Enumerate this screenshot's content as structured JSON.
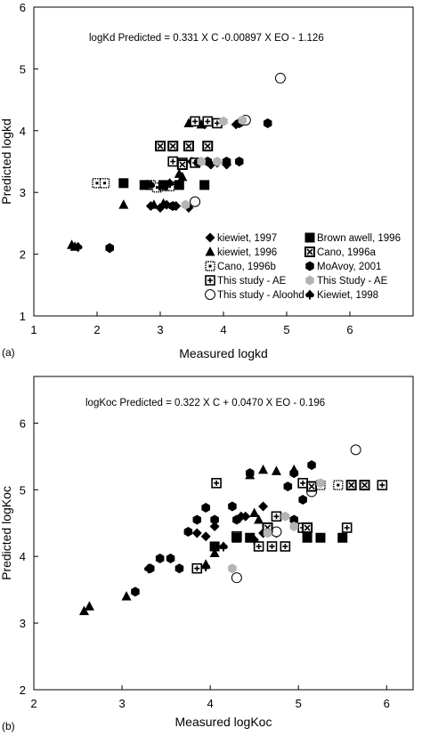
{
  "colors": {
    "black": "#000000",
    "gray": "#b4b4b4",
    "white": "#ffffff"
  },
  "chart_data": [
    {
      "type": "scatter",
      "panel_label": "(a)",
      "equation": "logKd Predicted = 0.331 X C -0.00897 X EO - 1.126",
      "xlabel": "Measured logkd",
      "ylabel": "Predicted logkd",
      "xlim": [
        1,
        7
      ],
      "ylim": [
        1,
        6
      ],
      "xticks": [
        "1",
        "2",
        "3",
        "4",
        "5",
        "6"
      ],
      "yticks": [
        "1",
        "2",
        "3",
        "4",
        "5",
        "6"
      ],
      "grid": false,
      "legend_position": "lower-right",
      "legend_columns": [
        [
          "kiewiet, 1997",
          "kiewiet, 1996",
          "Cano, 1996b",
          "This study - AE",
          "This study - Aloohd"
        ],
        [
          "Brown awell, 1996",
          "Cano, 1996a",
          "MoAvoy, 2001",
          "This Study - AE",
          "Kiewiet, 1998"
        ]
      ],
      "series": [
        {
          "name": "kiewiet, 1997",
          "marker": "diamond",
          "color": "#000000",
          "points": [
            [
              2.85,
              2.78
            ],
            [
              3.0,
              2.75
            ],
            [
              3.1,
              2.8
            ],
            [
              3.25,
              2.78
            ],
            [
              3.45,
              2.75
            ],
            [
              3.5,
              3.5
            ],
            [
              3.8,
              3.45
            ],
            [
              3.9,
              3.48
            ],
            [
              4.05,
              3.45
            ],
            [
              3.7,
              4.1
            ],
            [
              3.95,
              4.12
            ],
            [
              4.2,
              4.1
            ]
          ]
        },
        {
          "name": "kiewiet, 1996",
          "marker": "triangle",
          "color": "#000000",
          "points": [
            [
              1.6,
              2.15
            ],
            [
              1.65,
              2.12
            ],
            [
              2.42,
              2.8
            ],
            [
              2.9,
              2.8
            ],
            [
              3.05,
              2.82
            ],
            [
              3.3,
              3.3
            ],
            [
              3.35,
              3.25
            ],
            [
              3.45,
              4.12
            ],
            [
              3.65,
              4.1
            ]
          ]
        },
        {
          "name": "Cano, 1996b",
          "marker": "dotted-square",
          "color": "#000000",
          "points": [
            [
              2.0,
              3.15
            ],
            [
              2.12,
              3.15
            ],
            [
              2.85,
              3.12
            ],
            [
              2.95,
              3.08
            ],
            [
              3.05,
              3.1
            ],
            [
              3.15,
              3.1
            ]
          ]
        },
        {
          "name": "This study - AE",
          "marker": "plus-square",
          "color": "#000000",
          "points": [
            [
              3.2,
              3.5
            ],
            [
              3.35,
              3.48
            ],
            [
              3.55,
              4.15
            ],
            [
              3.75,
              4.15
            ],
            [
              3.9,
              4.12
            ],
            [
              3.55,
              3.48
            ]
          ]
        },
        {
          "name": "This study - Aloohd",
          "marker": "circle-open",
          "color": "#000000",
          "points": [
            [
              4.9,
              4.85
            ],
            [
              4.35,
              4.17
            ],
            [
              3.55,
              2.85
            ]
          ]
        },
        {
          "name": "Brown awell, 1996",
          "marker": "square",
          "color": "#000000",
          "points": [
            [
              2.42,
              3.15
            ],
            [
              2.75,
              3.12
            ],
            [
              3.05,
              3.12
            ],
            [
              3.3,
              3.12
            ],
            [
              3.7,
              3.12
            ]
          ]
        },
        {
          "name": "Cano, 1996a",
          "marker": "crossed-square",
          "color": "#000000",
          "points": [
            [
              3.0,
              3.75
            ],
            [
              3.2,
              3.75
            ],
            [
              3.45,
              3.75
            ],
            [
              3.75,
              3.75
            ],
            [
              3.35,
              3.45
            ]
          ]
        },
        {
          "name": "MoAvoy, 2001",
          "marker": "hexagon",
          "color": "#000000",
          "points": [
            [
              2.2,
              2.1
            ],
            [
              3.2,
              2.78
            ],
            [
              3.6,
              3.48
            ],
            [
              3.75,
              3.5
            ],
            [
              4.05,
              3.5
            ],
            [
              4.25,
              3.5
            ],
            [
              4.7,
              4.12
            ],
            [
              4.25,
              4.12
            ]
          ]
        },
        {
          "name": "This Study - AE",
          "marker": "gray-hexagon",
          "color": "#b4b4b4",
          "points": [
            [
              3.4,
              2.8
            ],
            [
              3.65,
              3.5
            ],
            [
              3.9,
              3.5
            ],
            [
              4.0,
              4.15
            ],
            [
              4.3,
              4.17
            ]
          ]
        },
        {
          "name": "Kiewiet, 1998",
          "marker": "spade",
          "color": "#000000",
          "points": [
            [
              1.7,
              2.12
            ],
            [
              2.2,
              2.1
            ],
            [
              2.85,
              3.12
            ],
            [
              3.15,
              3.15
            ]
          ]
        }
      ]
    },
    {
      "type": "scatter",
      "panel_label": "(b)",
      "equation": "logKoc Predicted = 0.322 X C + 0.0470 X EO - 0.196",
      "xlabel": "Measured logKoc",
      "ylabel": "Predicted logKoc",
      "xlim": [
        2,
        6.3
      ],
      "ylim": [
        2,
        6.7
      ],
      "xticks": [
        "2",
        "3",
        "4",
        "5",
        "6"
      ],
      "yticks": [
        "2",
        "3",
        "4",
        "5",
        "6"
      ],
      "grid": false,
      "series": [
        {
          "name": "kiewiet, 1997",
          "marker": "diamond",
          "color": "#000000",
          "points": [
            [
              3.85,
              4.35
            ],
            [
              3.95,
              4.3
            ],
            [
              4.05,
              4.45
            ],
            [
              4.35,
              4.6
            ],
            [
              4.4,
              4.6
            ],
            [
              4.6,
              4.35
            ],
            [
              4.75,
              4.35
            ],
            [
              4.6,
              4.75
            ]
          ]
        },
        {
          "name": "kiewiet, 1996",
          "marker": "triangle",
          "color": "#000000",
          "points": [
            [
              2.57,
              3.18
            ],
            [
              2.63,
              3.25
            ],
            [
              3.05,
              3.4
            ],
            [
              3.95,
              3.88
            ],
            [
              4.05,
              4.05
            ],
            [
              4.55,
              4.55
            ],
            [
              4.5,
              4.65
            ],
            [
              4.6,
              5.3
            ],
            [
              4.75,
              5.28
            ],
            [
              4.95,
              5.3
            ],
            [
              4.45,
              5.22
            ]
          ]
        },
        {
          "name": "Cano, 1996b",
          "marker": "dotted-square",
          "color": "#000000",
          "points": [
            [
              5.25,
              5.07
            ],
            [
              5.45,
              5.07
            ]
          ]
        },
        {
          "name": "This study - AE",
          "marker": "plus-square",
          "color": "#000000",
          "points": [
            [
              3.85,
              3.82
            ],
            [
              4.07,
              5.1
            ],
            [
              4.3,
              4.3
            ],
            [
              4.55,
              4.15
            ],
            [
              4.7,
              4.15
            ],
            [
              4.85,
              4.15
            ],
            [
              5.05,
              5.1
            ],
            [
              5.95,
              5.07
            ],
            [
              5.55,
              4.43
            ],
            [
              5.05,
              4.43
            ],
            [
              4.75,
              4.6
            ]
          ]
        },
        {
          "name": "This study - Aloohd",
          "marker": "circle-open",
          "color": "#000000",
          "points": [
            [
              4.3,
              3.68
            ],
            [
              4.75,
              4.37
            ],
            [
              5.15,
              4.97
            ],
            [
              5.65,
              5.6
            ]
          ]
        },
        {
          "name": "Brown awell, 1996",
          "marker": "square",
          "color": "#000000",
          "points": [
            [
              4.05,
              4.15
            ],
            [
              4.3,
              4.28
            ],
            [
              4.45,
              4.28
            ],
            [
              5.1,
              4.28
            ],
            [
              5.25,
              4.28
            ],
            [
              5.5,
              4.28
            ]
          ]
        },
        {
          "name": "Cano, 1996a",
          "marker": "crossed-square",
          "color": "#000000",
          "points": [
            [
              4.65,
              4.43
            ],
            [
              5.1,
              4.43
            ],
            [
              5.6,
              5.07
            ],
            [
              5.75,
              5.07
            ],
            [
              5.15,
              5.05
            ]
          ]
        },
        {
          "name": "MoAvoy, 2001",
          "marker": "hexagon",
          "color": "#000000",
          "points": [
            [
              3.15,
              3.47
            ],
            [
              3.32,
              3.82
            ],
            [
              3.43,
              3.97
            ],
            [
              3.55,
              3.97
            ],
            [
              3.65,
              3.82
            ],
            [
              3.75,
              4.37
            ],
            [
              3.85,
              4.55
            ],
            [
              3.95,
              4.73
            ],
            [
              4.05,
              4.55
            ],
            [
              4.25,
              4.75
            ],
            [
              4.3,
              4.55
            ],
            [
              4.45,
              5.25
            ],
            [
              4.88,
              5.05
            ],
            [
              4.95,
              4.55
            ],
            [
              5.05,
              4.85
            ],
            [
              4.95,
              5.25
            ],
            [
              5.15,
              5.37
            ]
          ]
        },
        {
          "name": "This Study - AE",
          "marker": "gray-hexagon",
          "color": "#b4b4b4",
          "points": [
            [
              4.25,
              3.82
            ],
            [
              4.65,
              4.35
            ],
            [
              4.85,
              4.6
            ],
            [
              4.95,
              4.45
            ],
            [
              5.25,
              5.1
            ]
          ]
        },
        {
          "name": "Kiewiet, 1998",
          "marker": "spade",
          "color": "#000000",
          "points": [
            [
              3.3,
              3.82
            ],
            [
              3.95,
              3.85
            ],
            [
              4.15,
              4.15
            ],
            [
              4.5,
              4.25
            ]
          ]
        }
      ]
    }
  ]
}
